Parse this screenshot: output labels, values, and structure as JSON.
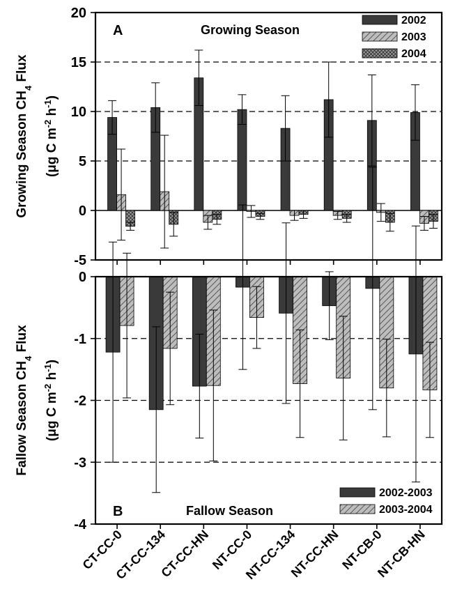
{
  "categories": [
    "CT-CC-0",
    "CT-CC-134",
    "CT-CC-HN",
    "NT-CC-0",
    "NT-CC-134",
    "NT-CC-HN",
    "NT-CB-0",
    "NT-CB-HN"
  ],
  "chart_data": [
    {
      "type": "bar",
      "panel": "A",
      "title": "Growing Season",
      "ylabel_lines": [
        "Growing Season CH",
        "4",
        " Flux",
        "(μg C m",
        "-2",
        " h",
        "-1",
        ")"
      ],
      "ylim": [
        -5,
        20
      ],
      "yticks": [
        -5,
        0,
        5,
        10,
        15,
        20
      ],
      "grid_lines": [
        -5,
        5,
        10,
        15
      ],
      "legend_position": "top-right",
      "categories": [
        "CT-CC-0",
        "CT-CC-134",
        "CT-CC-HN",
        "NT-CC-0",
        "NT-CC-134",
        "NT-CC-HN",
        "NT-CB-0",
        "NT-CB-HN"
      ],
      "series": [
        {
          "name": "2002",
          "color": "#3a3a3a",
          "pattern": "solid",
          "values": [
            9.4,
            10.4,
            13.4,
            10.2,
            8.3,
            11.2,
            9.1,
            9.9
          ],
          "errors": [
            1.7,
            2.5,
            2.8,
            1.5,
            3.3,
            3.8,
            4.6,
            2.8
          ]
        },
        {
          "name": "2003",
          "color": "#b4b4b4",
          "pattern": "hatch",
          "values": [
            1.6,
            1.9,
            -1.2,
            -0.1,
            -0.5,
            -0.5,
            -0.2,
            -1.3
          ],
          "errors": [
            4.6,
            5.7,
            0.7,
            0.6,
            0.5,
            0.4,
            0.9,
            0.7
          ]
        },
        {
          "name": "2004",
          "color": "#8a8a8a",
          "pattern": "crosshatch",
          "values": [
            -1.6,
            -1.4,
            -0.9,
            -0.6,
            -0.4,
            -0.8,
            -1.2,
            -1.1
          ],
          "errors": [
            0.4,
            1.2,
            0.5,
            0.3,
            0.4,
            0.4,
            0.9,
            0.7
          ]
        }
      ]
    },
    {
      "type": "bar",
      "panel": "B",
      "title": "Fallow Season",
      "ylabel_lines": [
        "Fallow Season CH",
        "4",
        " Flux",
        "(μg C m",
        "-2",
        " h",
        "-1",
        ")"
      ],
      "ylim": [
        -4,
        0
      ],
      "yticks": [
        -4,
        -3,
        -2,
        -1,
        0
      ],
      "grid_lines": [
        -3,
        -2,
        -1
      ],
      "legend_position": "bottom-right",
      "categories": [
        "CT-CC-0",
        "CT-CC-134",
        "CT-CC-HN",
        "NT-CC-0",
        "NT-CC-134",
        "NT-CC-HN",
        "NT-CB-0",
        "NT-CB-HN"
      ],
      "series": [
        {
          "name": "2002-2003",
          "color": "#3a3a3a",
          "pattern": "solid",
          "values": [
            -1.22,
            -2.15,
            -1.77,
            -0.17,
            -0.59,
            -0.47,
            -0.19,
            -1.25
          ],
          "errors": [
            1.78,
            1.34,
            0.84,
            1.33,
            1.46,
            0.55,
            1.96,
            2.07
          ]
        },
        {
          "name": "2003-2004",
          "color": "#b4b4b4",
          "pattern": "hatch",
          "values": [
            -0.79,
            -1.16,
            -1.76,
            -0.66,
            -1.73,
            -1.64,
            -1.8,
            -1.83
          ],
          "errors": [
            1.17,
            0.91,
            1.22,
            0.5,
            0.87,
            1.0,
            0.79,
            0.77
          ]
        }
      ]
    }
  ]
}
